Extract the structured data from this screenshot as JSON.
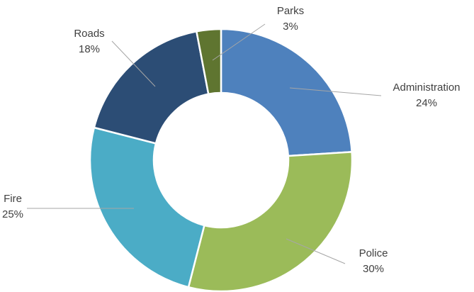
{
  "chart_data": {
    "type": "pie",
    "variant": "donut",
    "title": "",
    "legend": "none",
    "series": [
      {
        "name": "Administration",
        "value": 24,
        "label": "24%",
        "color": "#4E81BD"
      },
      {
        "name": "Police",
        "value": 30,
        "label": "30%",
        "color": "#9BBB59"
      },
      {
        "name": "Fire",
        "value": 25,
        "label": "25%",
        "color": "#4BACC6"
      },
      {
        "name": "Roads",
        "value": 18,
        "label": "18%",
        "color": "#2C4D75"
      },
      {
        "name": "Parks",
        "value": 3,
        "label": "3%",
        "color": "#5F7530"
      }
    ]
  }
}
